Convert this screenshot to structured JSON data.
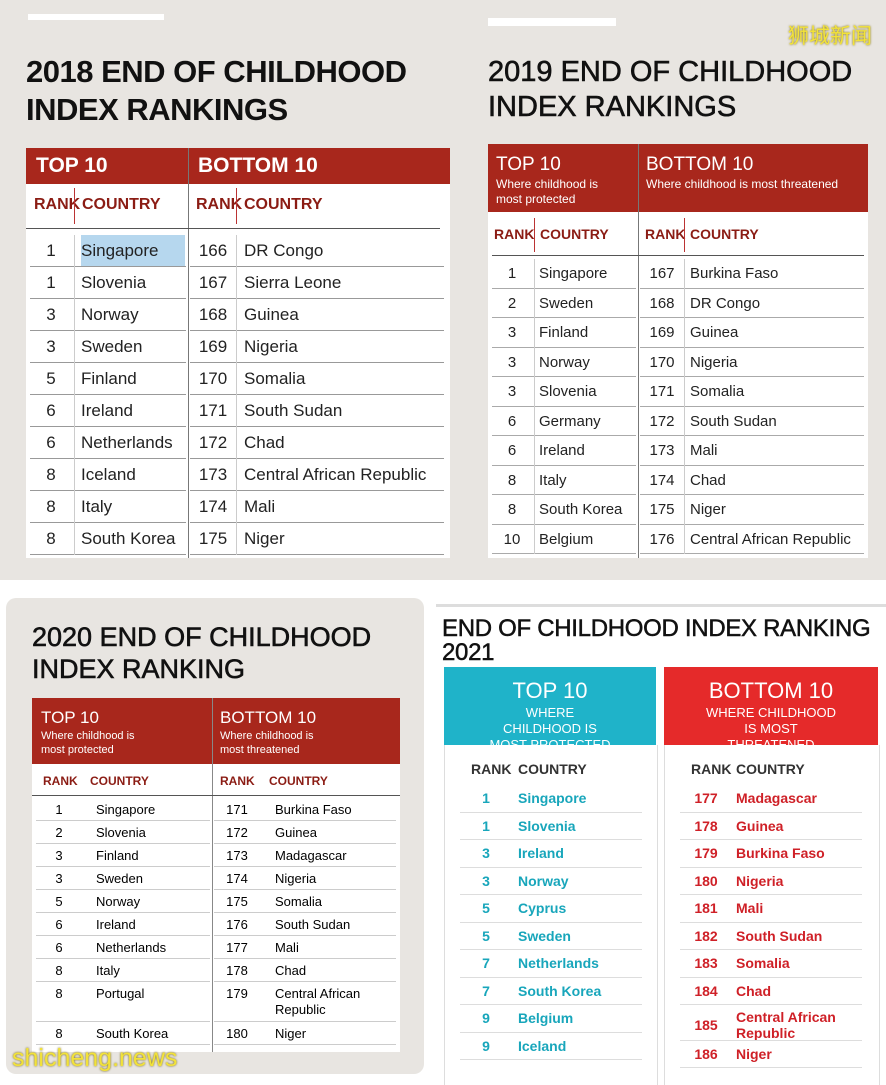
{
  "watermark_top": "狮城新闻",
  "watermark_bottom": "shicheng.news",
  "p2018": {
    "title_line1": "2018 END OF CHILDHOOD",
    "title_line2": "INDEX RANKINGS",
    "top_label": "TOP 10",
    "bottom_label": "BOTTOM 10",
    "col_rank": "RANK",
    "col_country": "COUNTRY",
    "top": [
      {
        "rank": "1",
        "country": "Singapore"
      },
      {
        "rank": "1",
        "country": "Slovenia"
      },
      {
        "rank": "3",
        "country": "Norway"
      },
      {
        "rank": "3",
        "country": "Sweden"
      },
      {
        "rank": "5",
        "country": "Finland"
      },
      {
        "rank": "6",
        "country": "Ireland"
      },
      {
        "rank": "6",
        "country": "Netherlands"
      },
      {
        "rank": "8",
        "country": "Iceland"
      },
      {
        "rank": "8",
        "country": "Italy"
      },
      {
        "rank": "8",
        "country": "South Korea"
      }
    ],
    "bottom": [
      {
        "rank": "166",
        "country": "DR Congo"
      },
      {
        "rank": "167",
        "country": "Sierra Leone"
      },
      {
        "rank": "168",
        "country": "Guinea"
      },
      {
        "rank": "169",
        "country": "Nigeria"
      },
      {
        "rank": "170",
        "country": "Somalia"
      },
      {
        "rank": "171",
        "country": "South Sudan"
      },
      {
        "rank": "172",
        "country": "Chad"
      },
      {
        "rank": "173",
        "country": "Central African Republic"
      },
      {
        "rank": "174",
        "country": "Mali"
      },
      {
        "rank": "175",
        "country": "Niger"
      }
    ]
  },
  "p2019": {
    "title_line1": "2019 END OF CHILDHOOD",
    "title_line2": "INDEX RANKINGS",
    "top_label": "TOP 10",
    "top_sub": "Where childhood is most protected",
    "bottom_label": "BOTTOM 10",
    "bottom_sub": "Where childhood is most threatened",
    "col_rank": "RANK",
    "col_country": "COUNTRY",
    "top": [
      {
        "rank": "1",
        "country": "Singapore"
      },
      {
        "rank": "2",
        "country": "Sweden"
      },
      {
        "rank": "3",
        "country": "Finland"
      },
      {
        "rank": "3",
        "country": "Norway"
      },
      {
        "rank": "3",
        "country": "Slovenia"
      },
      {
        "rank": "6",
        "country": "Germany"
      },
      {
        "rank": "6",
        "country": "Ireland"
      },
      {
        "rank": "8",
        "country": "Italy"
      },
      {
        "rank": "8",
        "country": "South Korea"
      },
      {
        "rank": "10",
        "country": "Belgium"
      }
    ],
    "bottom": [
      {
        "rank": "167",
        "country": "Burkina Faso"
      },
      {
        "rank": "168",
        "country": "DR Congo"
      },
      {
        "rank": "169",
        "country": "Guinea"
      },
      {
        "rank": "170",
        "country": "Nigeria"
      },
      {
        "rank": "171",
        "country": "Somalia"
      },
      {
        "rank": "172",
        "country": "South Sudan"
      },
      {
        "rank": "173",
        "country": "Mali"
      },
      {
        "rank": "174",
        "country": "Chad"
      },
      {
        "rank": "175",
        "country": "Niger"
      },
      {
        "rank": "176",
        "country": "Central African Republic"
      }
    ]
  },
  "p2020": {
    "title_line1": "2020 END OF CHILDHOOD",
    "title_line2": "INDEX RANKING",
    "top_label": "TOP 10",
    "top_sub": "Where childhood is most protected",
    "bottom_label": "BOTTOM 10",
    "bottom_sub": "Where childhood is most threatened",
    "col_rank": "RANK",
    "col_country": "COUNTRY",
    "top": [
      {
        "rank": "1",
        "country": "Singapore"
      },
      {
        "rank": "2",
        "country": "Slovenia"
      },
      {
        "rank": "3",
        "country": "Finland"
      },
      {
        "rank": "3",
        "country": "Sweden"
      },
      {
        "rank": "5",
        "country": "Norway"
      },
      {
        "rank": "6",
        "country": "Ireland"
      },
      {
        "rank": "6",
        "country": "Netherlands"
      },
      {
        "rank": "8",
        "country": "Italy"
      },
      {
        "rank": "8",
        "country": "Portugal"
      },
      {
        "rank": "8",
        "country": "South Korea"
      }
    ],
    "bottom": [
      {
        "rank": "171",
        "country": "Burkina Faso"
      },
      {
        "rank": "172",
        "country": "Guinea"
      },
      {
        "rank": "173",
        "country": "Madagascar"
      },
      {
        "rank": "174",
        "country": "Nigeria"
      },
      {
        "rank": "175",
        "country": "Somalia"
      },
      {
        "rank": "176",
        "country": "South Sudan"
      },
      {
        "rank": "177",
        "country": "Mali"
      },
      {
        "rank": "178",
        "country": "Chad"
      },
      {
        "rank": "179",
        "country": "Central African Republic"
      },
      {
        "rank": "180",
        "country": "Niger"
      }
    ]
  },
  "p2021": {
    "title": "END OF CHILDHOOD INDEX RANKING 2021",
    "top_label": "TOP 10",
    "top_sub": "WHERE CHILDHOOD IS MOST PROTECTED",
    "bottom_label": "BOTTOM 10",
    "bottom_sub": "WHERE CHILDHOOD IS MOST THREATENED",
    "col_rank": "RANK",
    "col_country": "COUNTRY",
    "top": [
      {
        "rank": "1",
        "country": "Singapore"
      },
      {
        "rank": "1",
        "country": "Slovenia"
      },
      {
        "rank": "3",
        "country": "Ireland"
      },
      {
        "rank": "3",
        "country": "Norway"
      },
      {
        "rank": "5",
        "country": "Cyprus"
      },
      {
        "rank": "5",
        "country": "Sweden"
      },
      {
        "rank": "7",
        "country": "Netherlands"
      },
      {
        "rank": "7",
        "country": "South Korea"
      },
      {
        "rank": "9",
        "country": "Belgium"
      },
      {
        "rank": "9",
        "country": "Iceland"
      }
    ],
    "bottom": [
      {
        "rank": "177",
        "country": "Madagascar"
      },
      {
        "rank": "178",
        "country": "Guinea"
      },
      {
        "rank": "179",
        "country": "Burkina Faso"
      },
      {
        "rank": "180",
        "country": "Nigeria"
      },
      {
        "rank": "181",
        "country": "Mali"
      },
      {
        "rank": "182",
        "country": "South Sudan"
      },
      {
        "rank": "183",
        "country": "Somalia"
      },
      {
        "rank": "184",
        "country": "Chad"
      },
      {
        "rank": "185",
        "country": "Central African Republic"
      },
      {
        "rank": "186",
        "country": "Niger"
      }
    ],
    "colors": {
      "top": "#1fb3c9",
      "bottom": "#e52a2a",
      "top_text": "#18a6bb",
      "bottom_text": "#cf2027"
    }
  }
}
